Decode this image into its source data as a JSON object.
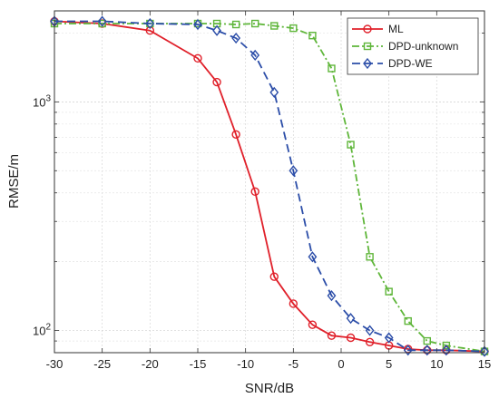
{
  "chart_data": {
    "type": "line",
    "xlabel": "SNR/dB",
    "ylabel": "RMSE/m",
    "xlim": [
      -30,
      15
    ],
    "ylim": [
      80,
      2500
    ],
    "yscale": "log",
    "grid": true,
    "legend_position": "top-right",
    "x_ticks": [
      -30,
      -25,
      -20,
      -15,
      -10,
      -5,
      0,
      5,
      10,
      15
    ],
    "x_tick_labels": [
      "-30",
      "-25",
      "-20",
      "-15",
      "-10",
      "-5",
      "0",
      "5",
      "10",
      "15"
    ],
    "y_major_ticks": [
      100,
      1000
    ],
    "y_major_tick_labels": [
      {
        "base": "10",
        "exp": "2"
      },
      {
        "base": "10",
        "exp": "3"
      }
    ],
    "series": [
      {
        "name": "ML",
        "color": "#e0202a",
        "dash": "solid",
        "marker": "circle",
        "x": [
          -30,
          -25,
          -20,
          -15,
          -13,
          -11,
          -9,
          -7,
          -5,
          -3,
          -1,
          1,
          3,
          5,
          7,
          9,
          11,
          15
        ],
        "y": [
          2250,
          2200,
          2050,
          1550,
          1220,
          720,
          405,
          172,
          131,
          106,
          95,
          93,
          89,
          86,
          83,
          82,
          82,
          81
        ]
      },
      {
        "name": "DPD-unknown",
        "color": "#5fb63a",
        "dash": "dashdot",
        "marker": "square",
        "x": [
          -30,
          -25,
          -20,
          -15,
          -13,
          -11,
          -9,
          -7,
          -5,
          -3,
          -1,
          1,
          3,
          5,
          7,
          9,
          11,
          15
        ],
        "y": [
          2200,
          2200,
          2200,
          2200,
          2200,
          2180,
          2200,
          2150,
          2100,
          1950,
          1400,
          650,
          210,
          148,
          110,
          90,
          86,
          81
        ]
      },
      {
        "name": "DPD-WE",
        "color": "#2b4da8",
        "dash": "dashed",
        "marker": "diamond",
        "x": [
          -30,
          -25,
          -20,
          -15,
          -13,
          -11,
          -9,
          -7,
          -5,
          -3,
          -1,
          1,
          3,
          5,
          7,
          9,
          11,
          15
        ],
        "y": [
          2250,
          2250,
          2200,
          2180,
          2050,
          1900,
          1600,
          1100,
          500,
          210,
          142,
          113,
          100,
          93,
          82,
          82,
          82,
          81
        ]
      }
    ]
  }
}
